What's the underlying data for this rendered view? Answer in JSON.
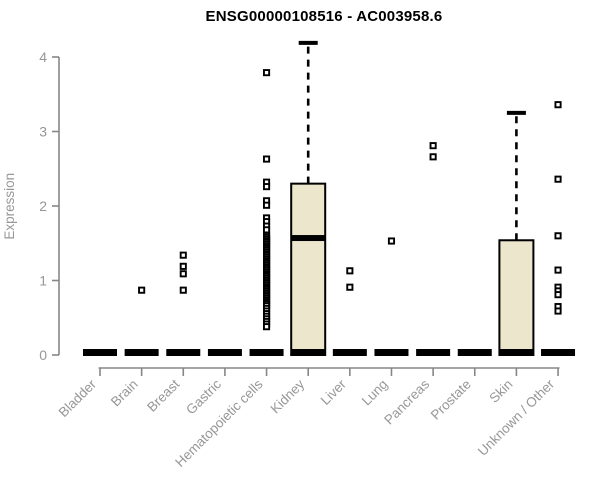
{
  "title": "ENSG00000108516 - AC003958.6",
  "colors": {
    "box_fill": "#ECE7CC",
    "box_stroke": "#000000",
    "axis": "#878787",
    "tick_label": "#979797",
    "title": "#000000",
    "background": "#FFFFFF"
  },
  "chart_data": {
    "type": "box",
    "title": "ENSG00000108516 - AC003958.6",
    "xlabel": "",
    "ylabel": "Expression",
    "ylim": [
      0,
      4
    ],
    "yticks": [
      0,
      1,
      2,
      3,
      4
    ],
    "grid": "off",
    "categories": [
      "Bladder",
      "Brain",
      "Breast",
      "Gastric",
      "Hematopoietic cells",
      "Kidney",
      "Liver",
      "Lung",
      "Pancreas",
      "Prostate",
      "Skin",
      "Unknown / Other"
    ],
    "boxes": [
      {
        "category": "Bladder",
        "whisker_low": 0,
        "q1": 0,
        "median": 0,
        "q3": 0,
        "whisker_high": 0,
        "outliers": []
      },
      {
        "category": "Brain",
        "whisker_low": 0,
        "q1": 0,
        "median": 0,
        "q3": 0,
        "whisker_high": 0,
        "outliers": [
          0.87
        ]
      },
      {
        "category": "Breast",
        "whisker_low": 0,
        "q1": 0,
        "median": 0,
        "q3": 0,
        "whisker_high": 0,
        "outliers": [
          1.34,
          1.19,
          1.09,
          0.87
        ]
      },
      {
        "category": "Gastric",
        "whisker_low": 0,
        "q1": 0,
        "median": 0,
        "q3": 0,
        "whisker_high": 0,
        "outliers": []
      },
      {
        "category": "Hematopoietic cells",
        "whisker_low": 0,
        "q1": 0,
        "median": 0,
        "q3": 0,
        "whisker_high": 0,
        "outliers": [
          3.79,
          2.63,
          2.32,
          2.26,
          2.07,
          2.01,
          1.84,
          1.79,
          1.73,
          1.68,
          1.61,
          1.585,
          1.56,
          1.535,
          1.51,
          1.485,
          1.46,
          1.435,
          1.41,
          1.385,
          1.36,
          1.335,
          1.31,
          1.285,
          1.26,
          1.235,
          1.21,
          1.185,
          1.16,
          1.135,
          1.11,
          1.085,
          1.06,
          1.035,
          1.01,
          0.985,
          0.96,
          0.935,
          0.91,
          0.885,
          0.86,
          0.835,
          0.81,
          0.785,
          0.76,
          0.735,
          0.71,
          0.685,
          0.66,
          0.625,
          0.59,
          0.555,
          0.52,
          0.485,
          0.45,
          0.415,
          0.38
        ]
      },
      {
        "category": "Kidney",
        "whisker_low": 0,
        "q1": 0,
        "median": 1.57,
        "q3": 2.3,
        "whisker_high": 4.19,
        "outliers": []
      },
      {
        "category": "Liver",
        "whisker_low": 0,
        "q1": 0,
        "median": 0,
        "q3": 0,
        "whisker_high": 0,
        "outliers": [
          1.13,
          0.91
        ]
      },
      {
        "category": "Lung",
        "whisker_low": 0,
        "q1": 0,
        "median": 0,
        "q3": 0,
        "whisker_high": 0,
        "outliers": [
          1.53
        ]
      },
      {
        "category": "Pancreas",
        "whisker_low": 0,
        "q1": 0,
        "median": 0,
        "q3": 0,
        "whisker_high": 0,
        "outliers": [
          2.81,
          2.66
        ]
      },
      {
        "category": "Prostate",
        "whisker_low": 0,
        "q1": 0,
        "median": 0,
        "q3": 0,
        "whisker_high": 0,
        "outliers": []
      },
      {
        "category": "Skin",
        "whisker_low": 0,
        "q1": 0,
        "median": 0,
        "q3": 1.54,
        "whisker_high": 3.25,
        "outliers": []
      },
      {
        "category": "Unknown / Other",
        "whisker_low": 0,
        "q1": 0,
        "median": 0,
        "q3": 0,
        "whisker_high": 0,
        "outliers": [
          3.36,
          2.36,
          1.6,
          1.14,
          0.91,
          0.86,
          0.81,
          0.65,
          0.59
        ]
      }
    ]
  }
}
